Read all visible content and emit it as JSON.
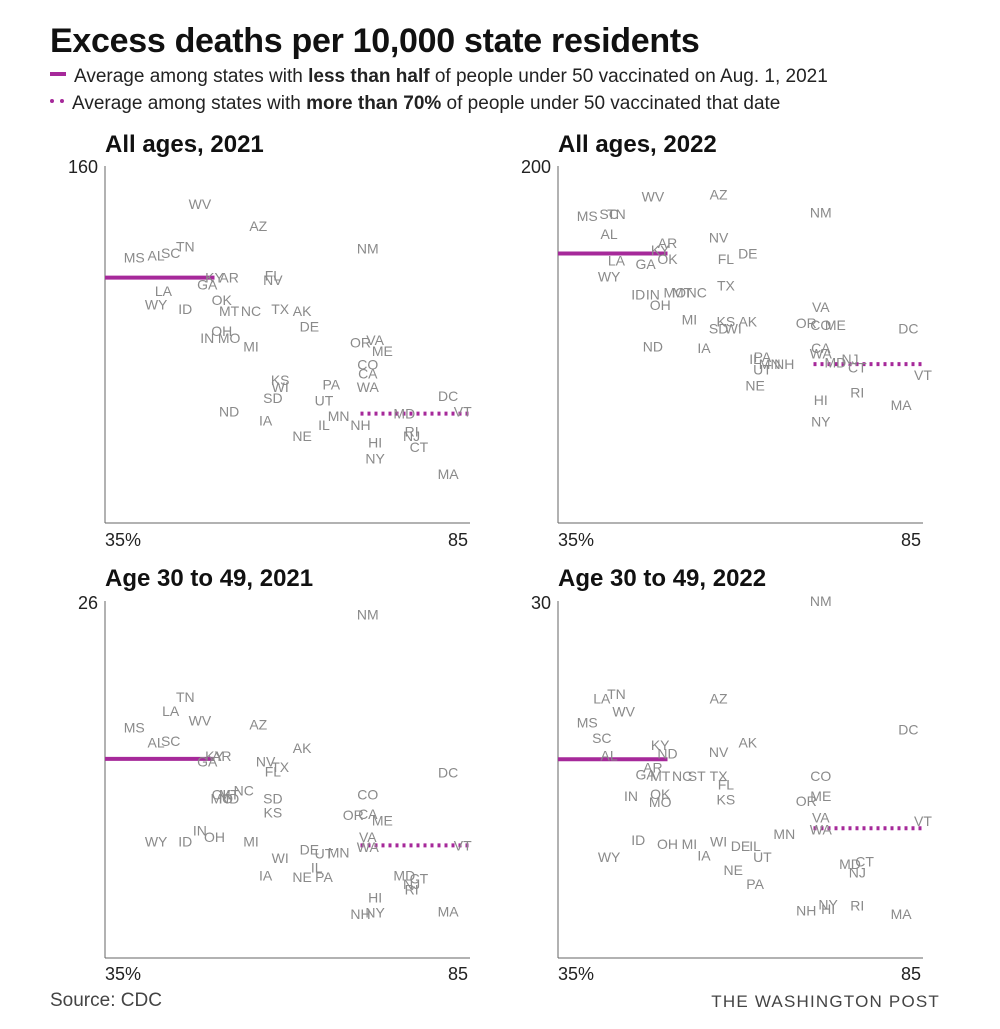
{
  "title": "Excess deaths per 10,000 state residents",
  "legend": {
    "solid": {
      "pre": "Average among states with ",
      "bold": "less than half",
      "post": " of people under 50 vaccinated on Aug. 1, 2021"
    },
    "dotted": {
      "pre": "Average among states with ",
      "bold": "more than 70%",
      "post": " of people under 50 vaccinated that date"
    }
  },
  "colors": {
    "average_line": "#a6299a",
    "state_label": "#8a8a8a",
    "axis": "#666666"
  },
  "source": "Source: CDC",
  "credit": "THE WASHINGTON POST",
  "chart_data": [
    {
      "type": "scatter",
      "title": "All ages, 2021",
      "xlim": [
        35,
        85
      ],
      "ylim": [
        0,
        160
      ],
      "x_ticks": [
        "35%",
        "85"
      ],
      "y_tick": "160",
      "averages": {
        "low_vax": 110,
        "high_vax": 49
      },
      "points": [
        {
          "label": "WV",
          "x": 48,
          "y": 143
        },
        {
          "label": "AZ",
          "x": 56,
          "y": 133
        },
        {
          "label": "TN",
          "x": 46,
          "y": 124
        },
        {
          "label": "MS",
          "x": 39,
          "y": 119
        },
        {
          "label": "AL",
          "x": 42,
          "y": 120
        },
        {
          "label": "SC",
          "x": 44,
          "y": 121
        },
        {
          "label": "NM",
          "x": 71,
          "y": 123
        },
        {
          "label": "KY",
          "x": 50,
          "y": 110
        },
        {
          "label": "AR",
          "x": 52,
          "y": 110
        },
        {
          "label": "GA",
          "x": 49,
          "y": 107
        },
        {
          "label": "FL",
          "x": 58,
          "y": 111
        },
        {
          "label": "NV",
          "x": 58,
          "y": 109
        },
        {
          "label": "LA",
          "x": 43,
          "y": 104
        },
        {
          "label": "WY",
          "x": 42,
          "y": 98
        },
        {
          "label": "ID",
          "x": 46,
          "y": 96
        },
        {
          "label": "OK",
          "x": 51,
          "y": 100
        },
        {
          "label": "MT",
          "x": 52,
          "y": 95
        },
        {
          "label": "NC",
          "x": 55,
          "y": 95
        },
        {
          "label": "TX",
          "x": 59,
          "y": 96
        },
        {
          "label": "AK",
          "x": 62,
          "y": 95
        },
        {
          "label": "DE",
          "x": 63,
          "y": 88
        },
        {
          "label": "OH",
          "x": 51,
          "y": 86
        },
        {
          "label": "IN",
          "x": 49,
          "y": 83
        },
        {
          "label": "MO",
          "x": 52,
          "y": 83
        },
        {
          "label": "MI",
          "x": 55,
          "y": 79
        },
        {
          "label": "OR",
          "x": 70,
          "y": 81
        },
        {
          "label": "VA",
          "x": 72,
          "y": 82
        },
        {
          "label": "ME",
          "x": 73,
          "y": 77
        },
        {
          "label": "CO",
          "x": 71,
          "y": 71
        },
        {
          "label": "CA",
          "x": 71,
          "y": 67
        },
        {
          "label": "KS",
          "x": 59,
          "y": 64
        },
        {
          "label": "PA",
          "x": 66,
          "y": 62
        },
        {
          "label": "WI",
          "x": 59,
          "y": 61
        },
        {
          "label": "WA",
          "x": 71,
          "y": 61
        },
        {
          "label": "SD",
          "x": 58,
          "y": 56
        },
        {
          "label": "UT",
          "x": 65,
          "y": 55
        },
        {
          "label": "ND",
          "x": 52,
          "y": 50
        },
        {
          "label": "IA",
          "x": 57,
          "y": 46
        },
        {
          "label": "MN",
          "x": 67,
          "y": 48
        },
        {
          "label": "IL",
          "x": 65,
          "y": 44
        },
        {
          "label": "NH",
          "x": 70,
          "y": 44
        },
        {
          "label": "MD",
          "x": 76,
          "y": 49
        },
        {
          "label": "DC",
          "x": 82,
          "y": 57
        },
        {
          "label": "VT",
          "x": 84,
          "y": 50
        },
        {
          "label": "NE",
          "x": 62,
          "y": 39
        },
        {
          "label": "RI",
          "x": 77,
          "y": 41
        },
        {
          "label": "NJ",
          "x": 77,
          "y": 39
        },
        {
          "label": "HI",
          "x": 72,
          "y": 36
        },
        {
          "label": "CT",
          "x": 78,
          "y": 34
        },
        {
          "label": "NY",
          "x": 72,
          "y": 29
        },
        {
          "label": "MA",
          "x": 82,
          "y": 22
        }
      ]
    },
    {
      "type": "scatter",
      "title": "All ages, 2022",
      "xlim": [
        35,
        85
      ],
      "ylim": [
        0,
        200
      ],
      "x_ticks": [
        "35%",
        "85"
      ],
      "y_tick": "200",
      "averages": {
        "low_vax": 151,
        "high_vax": 89
      },
      "points": [
        {
          "label": "WV",
          "x": 48,
          "y": 183
        },
        {
          "label": "AZ",
          "x": 57,
          "y": 184
        },
        {
          "label": "NM",
          "x": 71,
          "y": 174
        },
        {
          "label": "MS",
          "x": 39,
          "y": 172
        },
        {
          "label": "SC",
          "x": 42,
          "y": 173
        },
        {
          "label": "TN",
          "x": 43,
          "y": 173
        },
        {
          "label": "AL",
          "x": 42,
          "y": 162
        },
        {
          "label": "NV",
          "x": 57,
          "y": 160
        },
        {
          "label": "AR",
          "x": 50,
          "y": 157
        },
        {
          "label": "KY",
          "x": 49,
          "y": 153
        },
        {
          "label": "DE",
          "x": 61,
          "y": 151
        },
        {
          "label": "OK",
          "x": 50,
          "y": 148
        },
        {
          "label": "FL",
          "x": 58,
          "y": 148
        },
        {
          "label": "LA",
          "x": 43,
          "y": 147
        },
        {
          "label": "GA",
          "x": 47,
          "y": 145
        },
        {
          "label": "WY",
          "x": 42,
          "y": 138
        },
        {
          "label": "TX",
          "x": 58,
          "y": 133
        },
        {
          "label": "ID",
          "x": 46,
          "y": 128
        },
        {
          "label": "IN",
          "x": 48,
          "y": 128
        },
        {
          "label": "MO",
          "x": 51,
          "y": 129
        },
        {
          "label": "MT",
          "x": 52,
          "y": 129
        },
        {
          "label": "NC",
          "x": 54,
          "y": 129
        },
        {
          "label": "OH",
          "x": 49,
          "y": 122
        },
        {
          "label": "VA",
          "x": 71,
          "y": 121
        },
        {
          "label": "MI",
          "x": 53,
          "y": 114
        },
        {
          "label": "KS",
          "x": 58,
          "y": 113
        },
        {
          "label": "AK",
          "x": 61,
          "y": 113
        },
        {
          "label": "SD",
          "x": 57,
          "y": 109
        },
        {
          "label": "WI",
          "x": 59,
          "y": 109
        },
        {
          "label": "OR",
          "x": 69,
          "y": 112
        },
        {
          "label": "CO",
          "x": 71,
          "y": 111
        },
        {
          "label": "ME",
          "x": 73,
          "y": 111
        },
        {
          "label": "DC",
          "x": 83,
          "y": 109
        },
        {
          "label": "ND",
          "x": 48,
          "y": 99
        },
        {
          "label": "IA",
          "x": 55,
          "y": 98
        },
        {
          "label": "CA",
          "x": 71,
          "y": 98
        },
        {
          "label": "PA",
          "x": 63,
          "y": 93
        },
        {
          "label": "IL",
          "x": 62,
          "y": 92
        },
        {
          "label": "WA",
          "x": 71,
          "y": 95
        },
        {
          "label": "NJ",
          "x": 75,
          "y": 92
        },
        {
          "label": "MN",
          "x": 64,
          "y": 89
        },
        {
          "label": "NH",
          "x": 66,
          "y": 89
        },
        {
          "label": "MD",
          "x": 73,
          "y": 90
        },
        {
          "label": "UT",
          "x": 63,
          "y": 86
        },
        {
          "label": "CT",
          "x": 76,
          "y": 87
        },
        {
          "label": "VT",
          "x": 85,
          "y": 83
        },
        {
          "label": "NE",
          "x": 62,
          "y": 77
        },
        {
          "label": "RI",
          "x": 76,
          "y": 73
        },
        {
          "label": "HI",
          "x": 71,
          "y": 69
        },
        {
          "label": "MA",
          "x": 82,
          "y": 66
        },
        {
          "label": "NY",
          "x": 71,
          "y": 57
        }
      ]
    },
    {
      "type": "scatter",
      "title": "Age 30 to 49, 2021",
      "xlim": [
        35,
        85
      ],
      "ylim": [
        0,
        26
      ],
      "x_ticks": [
        "35%",
        "85"
      ],
      "y_tick": "26",
      "averages": {
        "low_vax": 14.5,
        "high_vax": 8.2
      },
      "points": [
        {
          "label": "NM",
          "x": 71,
          "y": 25
        },
        {
          "label": "TN",
          "x": 46,
          "y": 19
        },
        {
          "label": "LA",
          "x": 44,
          "y": 18
        },
        {
          "label": "WV",
          "x": 48,
          "y": 17.3
        },
        {
          "label": "AZ",
          "x": 56,
          "y": 17
        },
        {
          "label": "MS",
          "x": 39,
          "y": 16.8
        },
        {
          "label": "AL",
          "x": 42,
          "y": 15.7
        },
        {
          "label": "SC",
          "x": 44,
          "y": 15.8
        },
        {
          "label": "AK",
          "x": 62,
          "y": 15.3
        },
        {
          "label": "KY",
          "x": 50,
          "y": 14.7
        },
        {
          "label": "AR",
          "x": 51,
          "y": 14.7
        },
        {
          "label": "GA",
          "x": 49,
          "y": 14.3
        },
        {
          "label": "NV",
          "x": 57,
          "y": 14.3
        },
        {
          "label": "TX",
          "x": 59,
          "y": 13.9
        },
        {
          "label": "FL",
          "x": 58,
          "y": 13.6
        },
        {
          "label": "DC",
          "x": 82,
          "y": 13.5
        },
        {
          "label": "NC",
          "x": 54,
          "y": 12.2
        },
        {
          "label": "OK",
          "x": 51,
          "y": 11.9
        },
        {
          "label": "MT",
          "x": 52,
          "y": 11.9
        },
        {
          "label": "MO",
          "x": 51,
          "y": 11.6
        },
        {
          "label": "ND",
          "x": 52,
          "y": 11.6
        },
        {
          "label": "SD",
          "x": 58,
          "y": 11.6
        },
        {
          "label": "CO",
          "x": 71,
          "y": 11.9
        },
        {
          "label": "KS",
          "x": 58,
          "y": 10.6
        },
        {
          "label": "OR",
          "x": 69,
          "y": 10.4
        },
        {
          "label": "CA",
          "x": 71,
          "y": 10.5
        },
        {
          "label": "ME",
          "x": 73,
          "y": 10
        },
        {
          "label": "IN",
          "x": 48,
          "y": 9.3
        },
        {
          "label": "OH",
          "x": 50,
          "y": 8.8
        },
        {
          "label": "VA",
          "x": 71,
          "y": 8.8
        },
        {
          "label": "WY",
          "x": 42,
          "y": 8.5
        },
        {
          "label": "ID",
          "x": 46,
          "y": 8.5
        },
        {
          "label": "MI",
          "x": 55,
          "y": 8.5
        },
        {
          "label": "WA",
          "x": 71,
          "y": 8.1
        },
        {
          "label": "VT",
          "x": 84,
          "y": 8.2
        },
        {
          "label": "DE",
          "x": 63,
          "y": 7.9
        },
        {
          "label": "MN",
          "x": 67,
          "y": 7.7
        },
        {
          "label": "UT",
          "x": 65,
          "y": 7.6
        },
        {
          "label": "WI",
          "x": 59,
          "y": 7.3
        },
        {
          "label": "IL",
          "x": 64,
          "y": 6.6
        },
        {
          "label": "IA",
          "x": 57,
          "y": 6
        },
        {
          "label": "NE",
          "x": 62,
          "y": 5.9
        },
        {
          "label": "PA",
          "x": 65,
          "y": 5.9
        },
        {
          "label": "MD",
          "x": 76,
          "y": 6
        },
        {
          "label": "CT",
          "x": 78,
          "y": 5.8
        },
        {
          "label": "NJ",
          "x": 77,
          "y": 5.4
        },
        {
          "label": "RI",
          "x": 77,
          "y": 5
        },
        {
          "label": "HI",
          "x": 72,
          "y": 4.4
        },
        {
          "label": "MA",
          "x": 82,
          "y": 3.4
        },
        {
          "label": "NH",
          "x": 70,
          "y": 3.2
        },
        {
          "label": "NY",
          "x": 72,
          "y": 3.3
        }
      ]
    },
    {
      "type": "scatter",
      "title": "Age 30 to 49, 2022",
      "xlim": [
        35,
        85
      ],
      "ylim": [
        0,
        30
      ],
      "x_ticks": [
        "35%",
        "85"
      ],
      "y_tick": "30",
      "averages": {
        "low_vax": 16.7,
        "high_vax": 10.9
      },
      "points": [
        {
          "label": "NM",
          "x": 71,
          "y": 30
        },
        {
          "label": "TN",
          "x": 43,
          "y": 22.2
        },
        {
          "label": "LA",
          "x": 41,
          "y": 21.8
        },
        {
          "label": "AZ",
          "x": 57,
          "y": 21.8
        },
        {
          "label": "WV",
          "x": 44,
          "y": 20.7
        },
        {
          "label": "MS",
          "x": 39,
          "y": 19.8
        },
        {
          "label": "DC",
          "x": 83,
          "y": 19.2
        },
        {
          "label": "SC",
          "x": 41,
          "y": 18.5
        },
        {
          "label": "AK",
          "x": 61,
          "y": 18.1
        },
        {
          "label": "KY",
          "x": 49,
          "y": 17.9
        },
        {
          "label": "ND",
          "x": 50,
          "y": 17.2
        },
        {
          "label": "NV",
          "x": 57,
          "y": 17.3
        },
        {
          "label": "AL",
          "x": 42,
          "y": 17
        },
        {
          "label": "AR",
          "x": 48,
          "y": 16
        },
        {
          "label": "GA",
          "x": 47,
          "y": 15.4
        },
        {
          "label": "MT",
          "x": 49,
          "y": 15.3
        },
        {
          "label": "NC",
          "x": 52,
          "y": 15.3
        },
        {
          "label": "ST",
          "x": 54,
          "y": 15.3
        },
        {
          "label": "TX",
          "x": 57,
          "y": 15.3
        },
        {
          "label": "CO",
          "x": 71,
          "y": 15.3
        },
        {
          "label": "FL",
          "x": 58,
          "y": 14.6
        },
        {
          "label": "IN",
          "x": 45,
          "y": 13.6
        },
        {
          "label": "OK",
          "x": 49,
          "y": 13.8
        },
        {
          "label": "MO",
          "x": 49,
          "y": 13.1
        },
        {
          "label": "KS",
          "x": 58,
          "y": 13.3
        },
        {
          "label": "OR",
          "x": 69,
          "y": 13.2
        },
        {
          "label": "ME",
          "x": 71,
          "y": 13.6
        },
        {
          "label": "VA",
          "x": 71,
          "y": 11.8
        },
        {
          "label": "VT",
          "x": 85,
          "y": 11.5
        },
        {
          "label": "WA",
          "x": 71,
          "y": 10.8
        },
        {
          "label": "MN",
          "x": 66,
          "y": 10.4
        },
        {
          "label": "ID",
          "x": 46,
          "y": 9.9
        },
        {
          "label": "OH",
          "x": 50,
          "y": 9.6
        },
        {
          "label": "MI",
          "x": 53,
          "y": 9.6
        },
        {
          "label": "WI",
          "x": 57,
          "y": 9.8
        },
        {
          "label": "DE",
          "x": 60,
          "y": 9.4
        },
        {
          "label": "IL",
          "x": 62,
          "y": 9.4
        },
        {
          "label": "IA",
          "x": 55,
          "y": 8.6
        },
        {
          "label": "UT",
          "x": 63,
          "y": 8.5
        },
        {
          "label": "WY",
          "x": 42,
          "y": 8.5
        },
        {
          "label": "MD",
          "x": 75,
          "y": 7.9
        },
        {
          "label": "CT",
          "x": 77,
          "y": 8.1
        },
        {
          "label": "NJ",
          "x": 76,
          "y": 7.2
        },
        {
          "label": "NE",
          "x": 59,
          "y": 7.4
        },
        {
          "label": "PA",
          "x": 62,
          "y": 6.2
        },
        {
          "label": "NY",
          "x": 72,
          "y": 4.5
        },
        {
          "label": "NH",
          "x": 69,
          "y": 4
        },
        {
          "label": "HI",
          "x": 72,
          "y": 4.1
        },
        {
          "label": "RI",
          "x": 76,
          "y": 4.4
        },
        {
          "label": "MA",
          "x": 82,
          "y": 3.7
        }
      ]
    }
  ]
}
